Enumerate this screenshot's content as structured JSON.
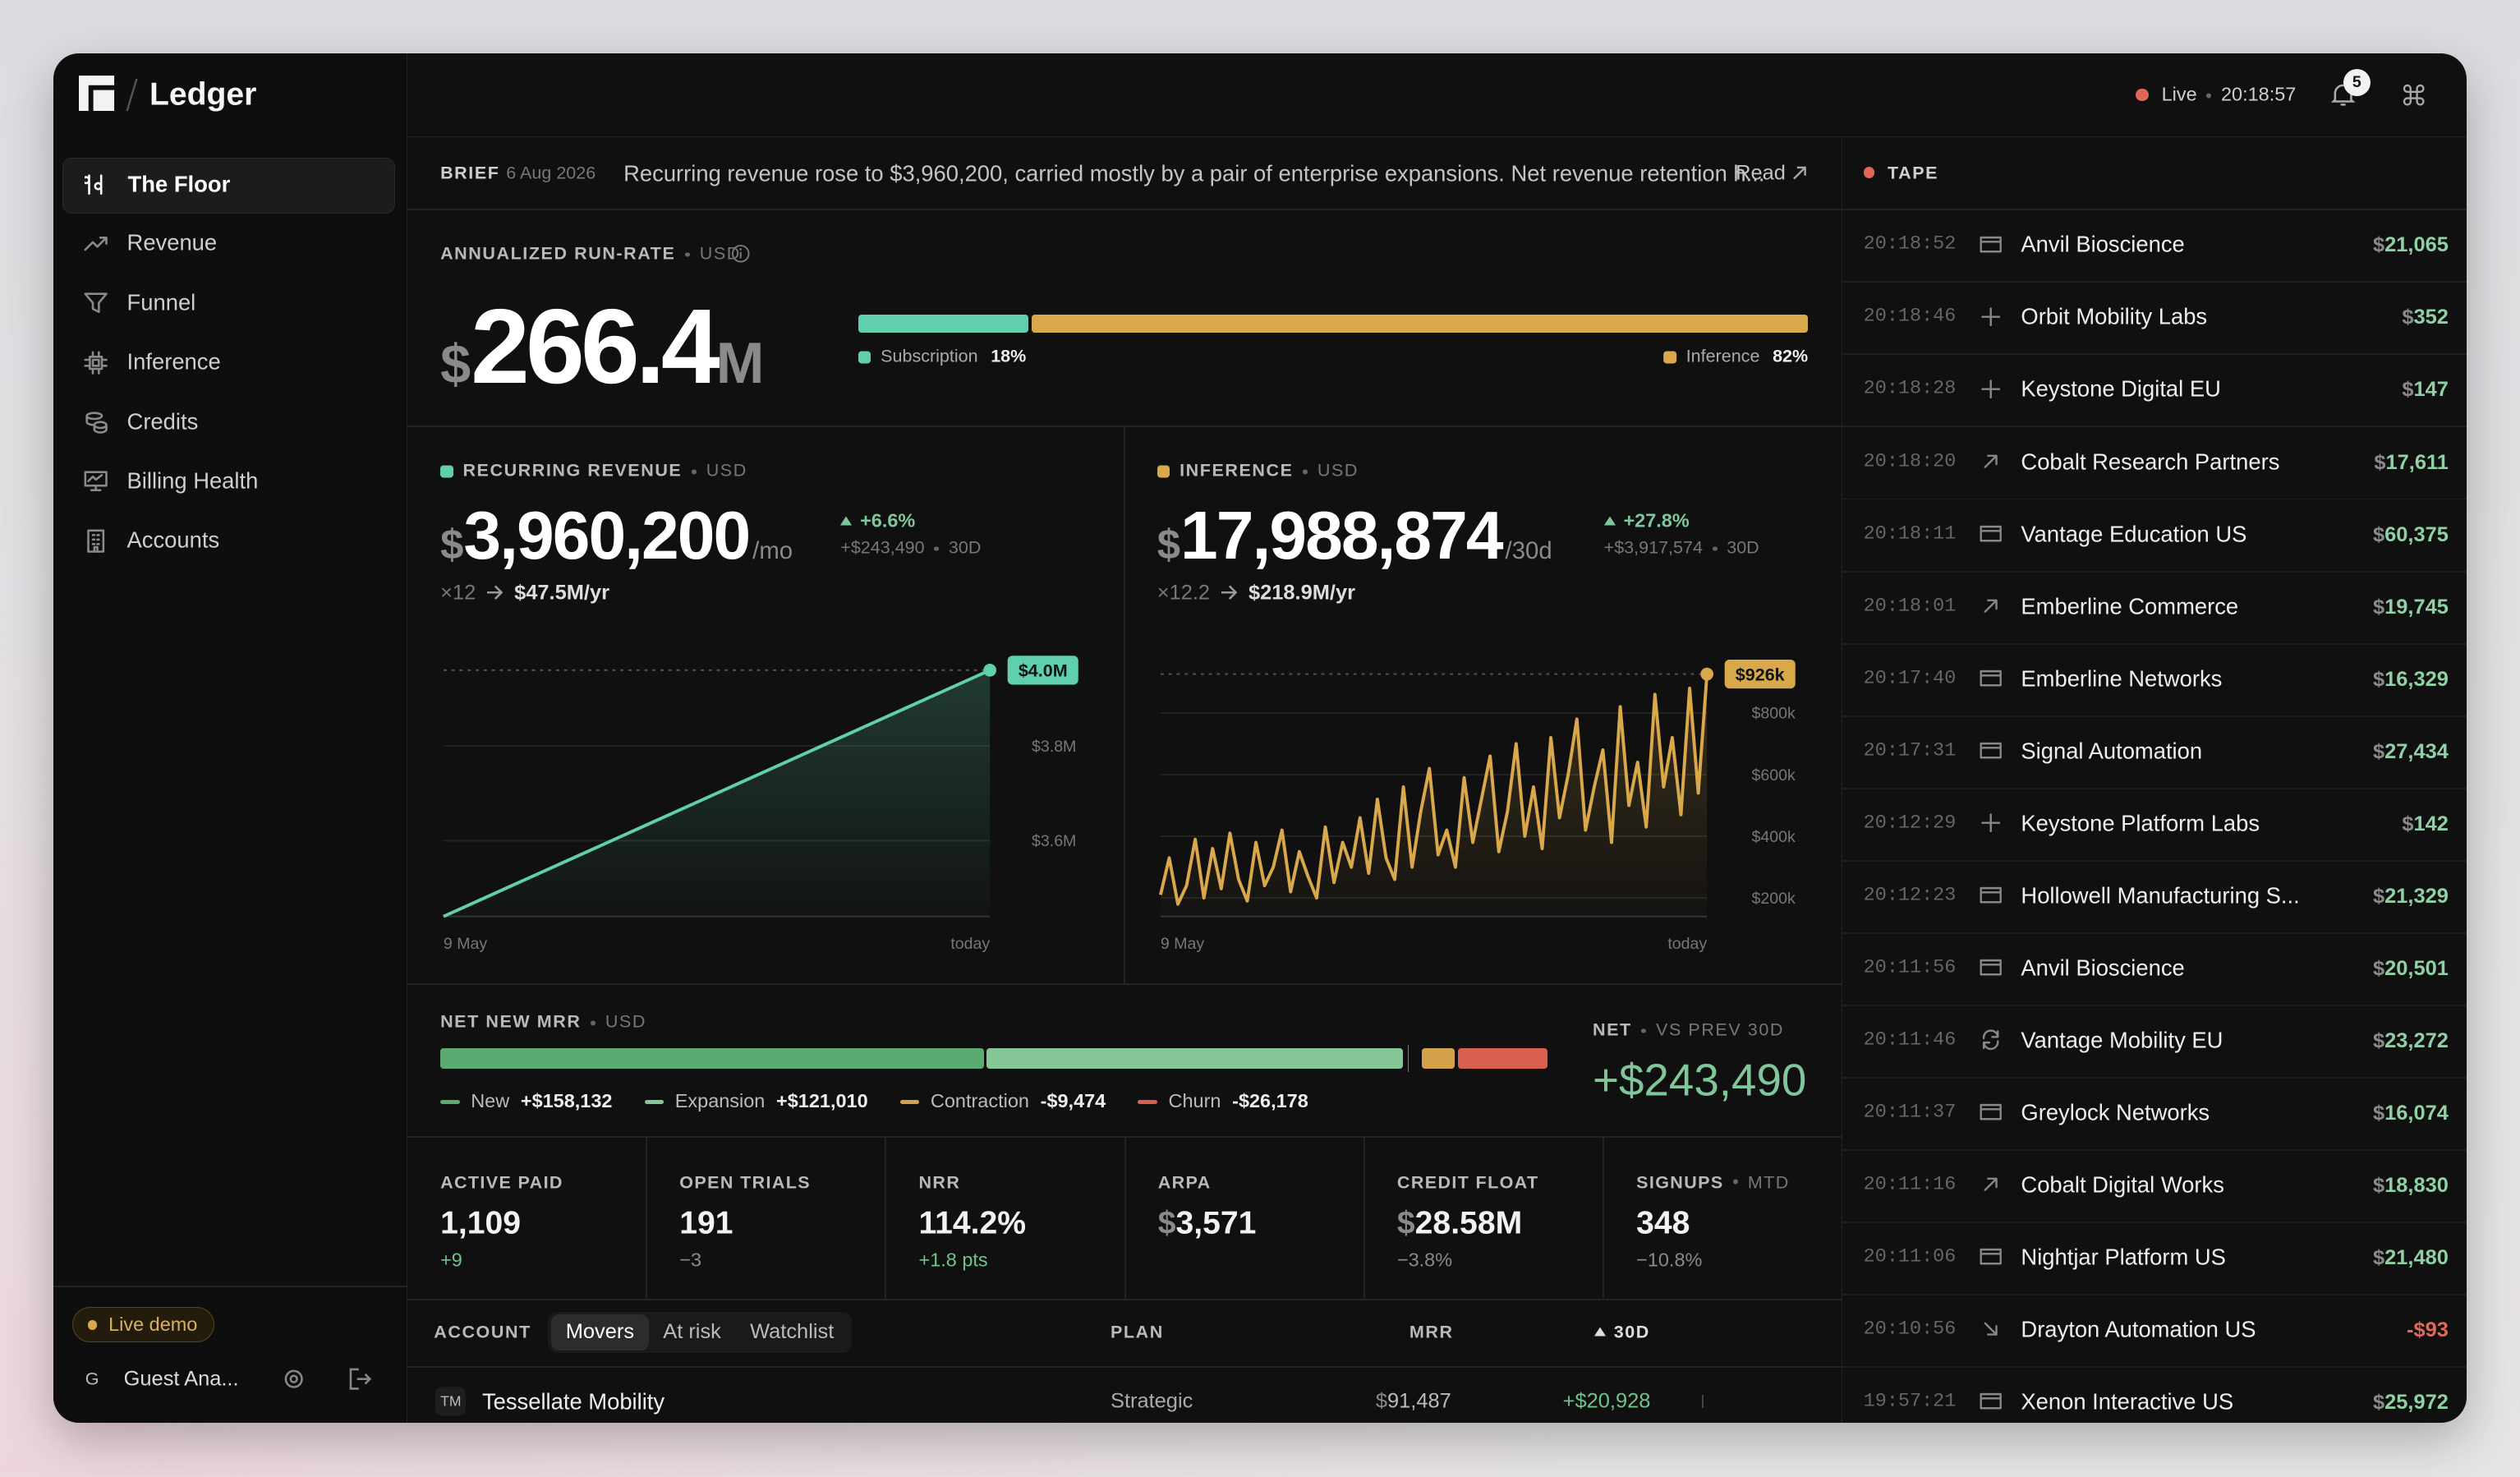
{
  "app": {
    "brand": "Ledger",
    "nav": [
      "The Floor",
      "Revenue",
      "Funnel",
      "Inference",
      "Credits",
      "Billing Health",
      "Accounts"
    ],
    "nav_active": 0,
    "demo_badge": "Live demo",
    "user": {
      "initial": "G",
      "name": "Guest Ana..."
    },
    "status": {
      "label": "Live",
      "time": "20:18:57",
      "notifications": "5"
    }
  },
  "brief": {
    "label": "BRIEF",
    "date": "6 Aug 2026",
    "text": "Recurring revenue rose to $3,960,200, carried mostly by a pair of enterprise expansions. Net revenue retention h...",
    "link": "Read"
  },
  "run_rate": {
    "label": "ANNUALIZED RUN-RATE",
    "unit": "USD",
    "currency": "$",
    "value": "266.4",
    "suffix": "M",
    "split": [
      {
        "name": "Subscription",
        "share": 18,
        "share_label": "18%",
        "color": "#5fcfae"
      },
      {
        "name": "Inference",
        "share": 82,
        "share_label": "82%",
        "color": "#d9a84a"
      }
    ]
  },
  "recurring": {
    "label": "RECURRING REVENUE",
    "unit": "USD",
    "currency": "$",
    "value": "3,960,200",
    "per": "/mo",
    "delta": "+6.6%",
    "delta_abs": "+$243,490",
    "window": "30D",
    "multiplier": "×12",
    "annualized": "$47.5M/yr",
    "chart": {
      "type": "line",
      "color": "#5fcfae",
      "x_labels": {
        "start": "9 May",
        "end": "today"
      },
      "values": [
        3.44,
        3.48,
        3.52,
        3.56,
        3.6,
        3.64,
        3.68,
        3.72,
        3.76,
        3.8,
        3.84,
        3.88,
        3.92,
        3.96
      ],
      "end_label": "$4.0M",
      "ylim": [
        3.44,
        4.0
      ],
      "yticks": [
        {
          "value": 3.8,
          "label": "$3.8M"
        },
        {
          "value": 3.6,
          "label": "$3.6M"
        }
      ],
      "grid": true
    }
  },
  "inference": {
    "label": "INFERENCE",
    "unit": "USD",
    "currency": "$",
    "value": "17,988,874",
    "per": "/30d",
    "delta": "+27.8%",
    "delta_abs": "+$3,917,574",
    "window": "30D",
    "multiplier": "×12.2",
    "annualized": "$218.9M/yr",
    "chart": {
      "type": "line",
      "color": "#d9a84a",
      "x_labels": {
        "start": "9 May",
        "end": "today"
      },
      "values": [
        210,
        330,
        180,
        240,
        390,
        200,
        360,
        230,
        410,
        260,
        190,
        380,
        240,
        300,
        420,
        220,
        350,
        270,
        200,
        430,
        250,
        380,
        300,
        460,
        280,
        520,
        330,
        260,
        560,
        300,
        480,
        620,
        340,
        420,
        300,
        590,
        380,
        520,
        660,
        350,
        480,
        700,
        400,
        560,
        360,
        720,
        460,
        600,
        780,
        420,
        560,
        680,
        380,
        820,
        500,
        640,
        430,
        860,
        560,
        720,
        470,
        880,
        540,
        926
      ],
      "end_label": "$926k",
      "ylim": [
        140,
        1000
      ],
      "yticks": [
        {
          "value": 800,
          "label": "$800k"
        },
        {
          "value": 600,
          "label": "$600k"
        },
        {
          "value": 400,
          "label": "$400k"
        },
        {
          "value": 200,
          "label": "$200k"
        }
      ],
      "grid": true
    }
  },
  "net_new": {
    "label": "NET NEW MRR",
    "unit": "USD",
    "segments": [
      {
        "name": "New",
        "value": 158132,
        "label": "+$158,132",
        "color": "#5aaa72"
      },
      {
        "name": "Expansion",
        "value": 121010,
        "label": "+$121,010",
        "color": "#86c797"
      },
      {
        "name": "Contraction",
        "value": -9474,
        "label": "-$9,474",
        "color": "#d4a24a"
      },
      {
        "name": "Churn",
        "value": -26178,
        "label": "-$26,178",
        "color": "#d9604f"
      }
    ],
    "net_label": "NET",
    "net_compare": "VS PREV 30D",
    "net_value": "+$243,490"
  },
  "kpis": [
    {
      "label": "ACTIVE PAID",
      "value": "1,109",
      "delta": "+9"
    },
    {
      "label": "OPEN TRIALS",
      "value": "191",
      "delta": "−3"
    },
    {
      "label": "NRR",
      "value": "114.2%",
      "delta": "+1.8 pts"
    },
    {
      "label": "ARPA",
      "value": "$3,571"
    },
    {
      "label": "CREDIT FLOAT",
      "value": "$28.58M",
      "delta": "−3.8%"
    },
    {
      "label": "SIGNUPS",
      "qualifier": "MTD",
      "value": "348",
      "delta": "−10.8%"
    }
  ],
  "table": {
    "columns": {
      "account": "ACCOUNT",
      "plan": "PLAN",
      "mrr": "MRR",
      "change": "30D"
    },
    "tabs": [
      "Movers",
      "At risk",
      "Watchlist"
    ],
    "active_tab": 0,
    "rows": [
      {
        "initials": "TM",
        "name": "Tessellate Mobility",
        "plan": "Strategic",
        "mrr": "$91,487",
        "change": "+$20,928"
      }
    ]
  },
  "tape": {
    "label": "TAPE",
    "rows": [
      {
        "time": "20:18:52",
        "icon": "card",
        "name": "Anvil Bioscience",
        "amount": "$21,065"
      },
      {
        "time": "20:18:46",
        "icon": "plus",
        "name": "Orbit Mobility Labs",
        "amount": "$352"
      },
      {
        "time": "20:18:28",
        "icon": "plus",
        "name": "Keystone Digital EU",
        "amount": "$147"
      },
      {
        "time": "20:18:20",
        "icon": "up",
        "name": "Cobalt Research Partners",
        "amount": "$17,611"
      },
      {
        "time": "20:18:11",
        "icon": "card",
        "name": "Vantage Education US",
        "amount": "$60,375"
      },
      {
        "time": "20:18:01",
        "icon": "up",
        "name": "Emberline Commerce",
        "amount": "$19,745"
      },
      {
        "time": "20:17:40",
        "icon": "card",
        "name": "Emberline Networks",
        "amount": "$16,329"
      },
      {
        "time": "20:17:31",
        "icon": "card",
        "name": "Signal Automation",
        "amount": "$27,434"
      },
      {
        "time": "20:12:29",
        "icon": "plus",
        "name": "Keystone Platform Labs",
        "amount": "$142"
      },
      {
        "time": "20:12:23",
        "icon": "card",
        "name": "Hollowell Manufacturing S...",
        "amount": "$21,329"
      },
      {
        "time": "20:11:56",
        "icon": "card",
        "name": "Anvil Bioscience",
        "amount": "$20,501"
      },
      {
        "time": "20:11:46",
        "icon": "refresh",
        "name": "Vantage Mobility EU",
        "amount": "$23,272"
      },
      {
        "time": "20:11:37",
        "icon": "card",
        "name": "Greylock Networks",
        "amount": "$16,074"
      },
      {
        "time": "20:11:16",
        "icon": "up",
        "name": "Cobalt Digital Works",
        "amount": "$18,830"
      },
      {
        "time": "20:11:06",
        "icon": "card",
        "name": "Nightjar Platform US",
        "amount": "$21,480"
      },
      {
        "time": "20:10:56",
        "icon": "down",
        "name": "Drayton Automation US",
        "amount": "-$93"
      },
      {
        "time": "19:57:21",
        "icon": "card",
        "name": "Xenon Interactive US",
        "amount": "$25,972"
      }
    ]
  }
}
